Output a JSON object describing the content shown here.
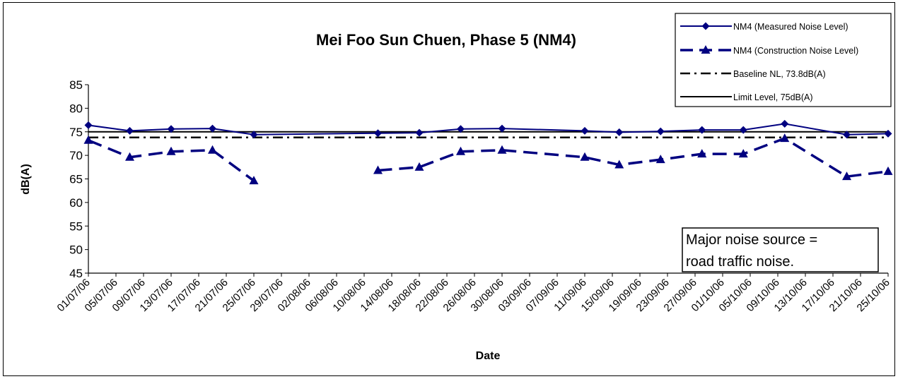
{
  "chart_data": {
    "type": "line",
    "title": "Mei Foo Sun Chuen, Phase 5 (NM4)",
    "xlabel": "Date",
    "ylabel": "dB(A)",
    "ylim": [
      45,
      85
    ],
    "yticks": [
      45,
      50,
      55,
      60,
      65,
      70,
      75,
      80,
      85
    ],
    "x_tick_labels": [
      "01/07/06",
      "05/07/06",
      "09/07/06",
      "13/07/06",
      "17/07/06",
      "21/07/06",
      "25/07/06",
      "29/07/06",
      "02/08/06",
      "06/08/06",
      "10/08/06",
      "14/08/06",
      "18/08/06",
      "22/08/06",
      "26/08/06",
      "30/08/06",
      "03/09/06",
      "07/09/06",
      "11/09/06",
      "15/09/06",
      "19/09/06",
      "23/09/06",
      "27/09/06",
      "01/10/06",
      "05/10/06",
      "09/10/06",
      "13/10/06",
      "17/10/06",
      "21/10/06",
      "25/10/06"
    ],
    "x_range": [
      "01/07/06",
      "25/10/06"
    ],
    "grid": false,
    "legend_position": "top-right",
    "series": [
      {
        "name": "NM4 (Measured Noise Level)",
        "style": "solid-diamond",
        "color": "#000080",
        "points": [
          {
            "x": "01/07/06",
            "y": 76.4
          },
          {
            "x": "07/07/06",
            "y": 75.2
          },
          {
            "x": "13/07/06",
            "y": 75.6
          },
          {
            "x": "19/07/06",
            "y": 75.7
          },
          {
            "x": "25/07/06",
            "y": 74.4
          },
          {
            "x": "12/08/06",
            "y": 74.7
          },
          {
            "x": "18/08/06",
            "y": 74.8
          },
          {
            "x": "24/08/06",
            "y": 75.6
          },
          {
            "x": "30/08/06",
            "y": 75.7
          },
          {
            "x": "11/09/06",
            "y": 75.2
          },
          {
            "x": "16/09/06",
            "y": 74.9
          },
          {
            "x": "22/09/06",
            "y": 75.1
          },
          {
            "x": "28/09/06",
            "y": 75.4
          },
          {
            "x": "04/10/06",
            "y": 75.4
          },
          {
            "x": "10/10/06",
            "y": 76.7
          },
          {
            "x": "19/10/06",
            "y": 74.4
          },
          {
            "x": "25/10/06",
            "y": 74.6
          }
        ]
      },
      {
        "name": "NM4 (Construction Noise Level)",
        "style": "dashed-triangle",
        "color": "#000080",
        "segments": [
          [
            {
              "x": "01/07/06",
              "y": 73.2
            },
            {
              "x": "07/07/06",
              "y": 69.6
            },
            {
              "x": "13/07/06",
              "y": 70.8
            },
            {
              "x": "19/07/06",
              "y": 71.1
            },
            {
              "x": "25/07/06",
              "y": 64.6
            }
          ],
          [
            {
              "x": "12/08/06",
              "y": 66.8
            },
            {
              "x": "18/08/06",
              "y": 67.5
            },
            {
              "x": "24/08/06",
              "y": 70.8
            },
            {
              "x": "30/08/06",
              "y": 71.1
            },
            {
              "x": "11/09/06",
              "y": 69.6
            },
            {
              "x": "16/09/06",
              "y": 68.0
            },
            {
              "x": "22/09/06",
              "y": 69.1
            },
            {
              "x": "28/09/06",
              "y": 70.3
            },
            {
              "x": "04/10/06",
              "y": 70.3
            },
            {
              "x": "10/10/06",
              "y": 73.6
            },
            {
              "x": "19/10/06",
              "y": 65.5
            },
            {
              "x": "25/10/06",
              "y": 66.6
            }
          ]
        ]
      },
      {
        "name": "Baseline NL, 73.8dB(A)",
        "style": "dash-dot",
        "color": "#000000",
        "constant": 73.8
      },
      {
        "name": "Limit Level, 75dB(A)",
        "style": "solid",
        "color": "#000000",
        "constant": 75
      }
    ],
    "annotation": [
      "Major noise source =",
      "road traffic noise."
    ]
  }
}
